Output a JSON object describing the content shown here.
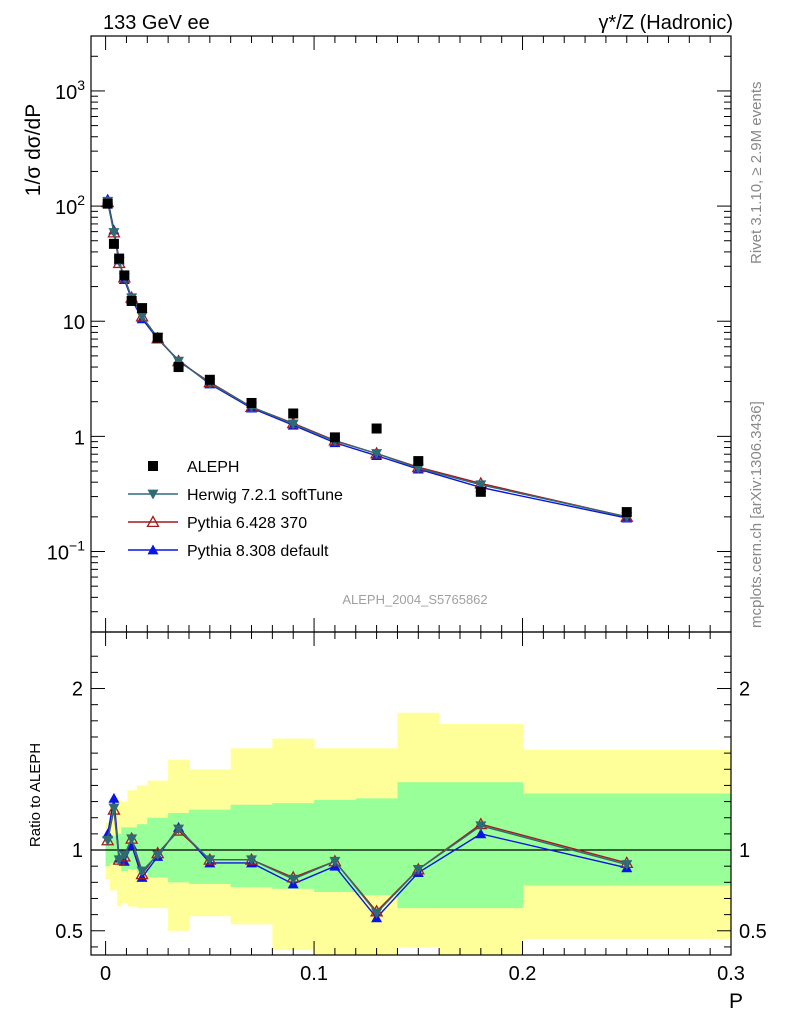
{
  "header": {
    "left": "133 GeV ee",
    "right": "γ*/Z (Hadronic)"
  },
  "side_text": {
    "top": "Rivet 3.1.10, ≥ 2.9M events",
    "bottom": "mcplots.cern.ch [arXiv:1306.3436]"
  },
  "watermark": "ALEPH_2004_S5765862",
  "colors": {
    "data": "#000000",
    "herwig": "#2e6b73",
    "pythia6": "#a31c1c",
    "pythia8": "#0a14e6",
    "band_inner": "#99ff99",
    "band_outer": "#ffff99"
  },
  "chart_data": [
    {
      "type": "scatter",
      "panel": "main",
      "ylabel": "1/σ dσ/dP",
      "ylog": true,
      "ylim": [
        0.02,
        3000
      ],
      "xlim": [
        -0.007,
        0.3
      ],
      "ytick_labels": [
        "10^-1",
        "1",
        "10",
        "10^2",
        "10^3"
      ],
      "legend_position": "lower-left",
      "x": [
        0.001,
        0.004,
        0.0065,
        0.009,
        0.0125,
        0.0175,
        0.025,
        0.035,
        0.05,
        0.07,
        0.09,
        0.11,
        0.13,
        0.15,
        0.18,
        0.25
      ],
      "series": [
        {
          "name": "ALEPH",
          "style": "data",
          "marker": "square",
          "values": [
            105,
            47,
            35,
            25,
            15,
            13,
            7.2,
            4.0,
            3.1,
            1.95,
            1.58,
            0.98,
            1.17,
            0.61,
            0.33,
            0.22
          ]
        },
        {
          "name": "Herwig 7.2.1 softTune",
          "style": "herwig",
          "marker": "triangle-down",
          "values": [
            110,
            59,
            33,
            24,
            16,
            11,
            7.2,
            4.5,
            2.9,
            1.8,
            1.28,
            0.91,
            0.71,
            0.53,
            0.38,
            0.2
          ]
        },
        {
          "name": "Pythia 6.428 370",
          "style": "pythia6",
          "marker": "triangle-open",
          "values": [
            108,
            59,
            32,
            24,
            16,
            11,
            7.1,
            4.5,
            2.95,
            1.8,
            1.3,
            0.92,
            0.71,
            0.54,
            0.39,
            0.2
          ]
        },
        {
          "name": "Pythia 8.308 default",
          "style": "pythia8",
          "marker": "triangle-up",
          "values": [
            115,
            62,
            34,
            23,
            15.5,
            10.5,
            7.0,
            4.6,
            2.85,
            1.76,
            1.25,
            0.88,
            0.68,
            0.52,
            0.36,
            0.195
          ]
        }
      ]
    },
    {
      "type": "line",
      "panel": "ratio",
      "xlabel": "P",
      "ylabel": "Ratio to ALEPH",
      "ylim": [
        0.35,
        2.35
      ],
      "xlim": [
        -0.007,
        0.3
      ],
      "ytick_labels": [
        "0.5",
        "1",
        "2"
      ],
      "xtick_labels": [
        "0",
        "0.1",
        "0.2",
        "0.3"
      ],
      "reference_line": 1,
      "bands": {
        "edges": [
          0,
          0.002,
          0.0055,
          0.0075,
          0.0105,
          0.015,
          0.02,
          0.03,
          0.04,
          0.06,
          0.08,
          0.1,
          0.12,
          0.14,
          0.16,
          0.2,
          0.3
        ],
        "inner_low": [
          0.9,
          0.92,
          0.9,
          0.87,
          0.88,
          0.86,
          0.83,
          0.8,
          0.79,
          0.77,
          0.76,
          0.74,
          0.72,
          0.64,
          0.64,
          0.78
        ],
        "inner_high": [
          1.1,
          1.09,
          1.1,
          1.14,
          1.14,
          1.16,
          1.2,
          1.23,
          1.25,
          1.28,
          1.29,
          1.31,
          1.32,
          1.42,
          1.42,
          1.35
        ],
        "outer_low": [
          0.82,
          0.75,
          0.65,
          0.67,
          0.65,
          0.64,
          0.64,
          0.5,
          0.59,
          0.54,
          0.38,
          0.3,
          0.26,
          0.4,
          0.26,
          0.45
        ],
        "outer_high": [
          1.17,
          1.32,
          1.31,
          1.3,
          1.37,
          1.4,
          1.43,
          1.56,
          1.5,
          1.63,
          1.69,
          1.63,
          1.63,
          1.85,
          1.78,
          1.62
        ]
      },
      "x": [
        0.001,
        0.004,
        0.0065,
        0.009,
        0.0125,
        0.0175,
        0.025,
        0.035,
        0.05,
        0.07,
        0.09,
        0.11,
        0.13,
        0.15,
        0.18,
        0.25
      ],
      "series": [
        {
          "name": "Herwig 7.2.1 softTune",
          "style": "herwig",
          "marker": "triangle-down",
          "values": [
            1.06,
            1.26,
            0.94,
            0.97,
            1.07,
            0.87,
            0.97,
            1.13,
            0.94,
            0.94,
            0.82,
            0.93,
            0.61,
            0.88,
            1.15,
            0.91
          ]
        },
        {
          "name": "Pythia 6.428 370",
          "style": "pythia6",
          "marker": "triangle-open",
          "values": [
            1.06,
            1.25,
            0.94,
            0.96,
            1.07,
            0.85,
            0.98,
            1.12,
            0.94,
            0.94,
            0.83,
            0.93,
            0.62,
            0.88,
            1.16,
            0.92
          ]
        },
        {
          "name": "Pythia 8.308 default",
          "style": "pythia8",
          "marker": "triangle-up",
          "values": [
            1.1,
            1.32,
            0.95,
            0.93,
            1.03,
            0.83,
            0.96,
            1.14,
            0.92,
            0.92,
            0.79,
            0.9,
            0.58,
            0.86,
            1.1,
            0.89
          ]
        }
      ]
    }
  ]
}
